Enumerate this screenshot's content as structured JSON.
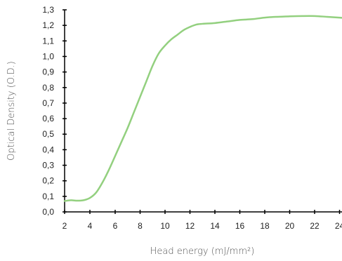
{
  "chart_data": {
    "type": "line",
    "xlabel": "Head energy (mJ/mm²)",
    "ylabel": "Optical Density (O.D.)",
    "xlim": [
      2,
      24.7
    ],
    "ylim": [
      0,
      1.3
    ],
    "x_ticks": [
      2,
      4,
      6,
      8,
      10,
      12,
      14,
      16,
      18,
      20,
      22,
      24
    ],
    "x_tick_labels": [
      "2",
      "4",
      "6",
      "8",
      "10",
      "12",
      "14",
      "16",
      "18",
      "20",
      "22",
      "24"
    ],
    "y_ticks": [
      0.0,
      0.1,
      0.2,
      0.3,
      0.4,
      0.5,
      0.6,
      0.7,
      0.8,
      0.9,
      1.0,
      1.1,
      1.2,
      1.3
    ],
    "y_tick_labels": [
      "0,0",
      "0,1",
      "0,2",
      "0,3",
      "0,4",
      "0,5",
      "0,6",
      "0,7",
      "0,8",
      "0,9",
      "1,0",
      "1,1",
      "1,2",
      "1,3"
    ],
    "grid": false,
    "series": [
      {
        "color": "#93d07f",
        "x": [
          2.0,
          2.5,
          3.0,
          3.5,
          4.0,
          4.5,
          5.0,
          5.5,
          6.0,
          6.5,
          7.0,
          7.5,
          8.0,
          8.5,
          9.0,
          9.5,
          10.0,
          10.5,
          11.0,
          11.5,
          12.0,
          12.5,
          13.0,
          14.0,
          15.0,
          16.0,
          17.0,
          18.0,
          19.0,
          20.0,
          21.0,
          22.0,
          23.0,
          24.0,
          24.7
        ],
        "y": [
          0.07,
          0.075,
          0.072,
          0.075,
          0.09,
          0.125,
          0.19,
          0.27,
          0.36,
          0.45,
          0.54,
          0.64,
          0.74,
          0.84,
          0.94,
          1.02,
          1.07,
          1.11,
          1.14,
          1.17,
          1.19,
          1.205,
          1.21,
          1.215,
          1.225,
          1.235,
          1.24,
          1.25,
          1.255,
          1.258,
          1.26,
          1.26,
          1.255,
          1.25,
          1.245
        ]
      }
    ]
  }
}
